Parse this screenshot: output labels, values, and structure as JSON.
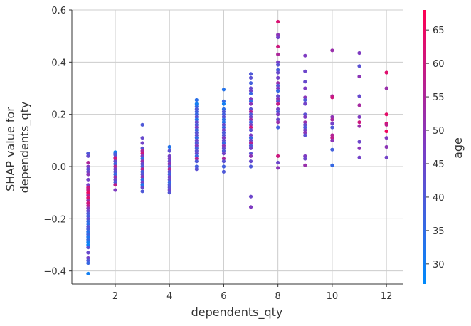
{
  "chart_data": {
    "type": "scatter",
    "title": "",
    "xlabel": "dependents_qty",
    "ylabel_lines": [
      "SHAP value for",
      "dependents_qty"
    ],
    "xlim": [
      0.4,
      12.6
    ],
    "ylim": [
      -0.45,
      0.6
    ],
    "x_ticks": [
      2,
      4,
      6,
      8,
      10,
      12
    ],
    "y_ticks": [
      -0.4,
      -0.2,
      0.0,
      0.2,
      0.4,
      0.6
    ],
    "y_tick_labels": [
      "−0.4",
      "−0.2",
      "0.0",
      "0.2",
      "0.4",
      "0.6"
    ],
    "grid": true,
    "colorbar": {
      "label": "age",
      "range": [
        27,
        68
      ],
      "ticks": [
        30,
        35,
        40,
        45,
        50,
        55,
        60,
        65
      ],
      "colors": {
        "low": "#008afb",
        "mid": "#7c3cc4",
        "high": "#ff0052"
      }
    },
    "points": [
      [
        1,
        0.05,
        42
      ],
      [
        1,
        0.05,
        40
      ],
      [
        1,
        0.04,
        44
      ],
      [
        1,
        0.015,
        55
      ],
      [
        1,
        0.0,
        48
      ],
      [
        1,
        -0.01,
        42
      ],
      [
        1,
        -0.02,
        45
      ],
      [
        1,
        -0.03,
        50
      ],
      [
        1,
        -0.05,
        46
      ],
      [
        1,
        -0.07,
        47
      ],
      [
        1,
        -0.08,
        62
      ],
      [
        1,
        -0.085,
        58
      ],
      [
        1,
        -0.09,
        60
      ],
      [
        1,
        -0.1,
        65
      ],
      [
        1,
        -0.11,
        55
      ],
      [
        1,
        -0.12,
        63
      ],
      [
        1,
        -0.13,
        52
      ],
      [
        1,
        -0.14,
        61
      ],
      [
        1,
        -0.15,
        57
      ],
      [
        1,
        -0.16,
        49
      ],
      [
        1,
        -0.17,
        44
      ],
      [
        1,
        -0.18,
        40
      ],
      [
        1,
        -0.19,
        38
      ],
      [
        1,
        -0.2,
        43
      ],
      [
        1,
        -0.21,
        36
      ],
      [
        1,
        -0.22,
        34
      ],
      [
        1,
        -0.23,
        41
      ],
      [
        1,
        -0.24,
        39
      ],
      [
        1,
        -0.25,
        33
      ],
      [
        1,
        -0.26,
        37
      ],
      [
        1,
        -0.27,
        32
      ],
      [
        1,
        -0.28,
        35
      ],
      [
        1,
        -0.29,
        30
      ],
      [
        1,
        -0.3,
        29
      ],
      [
        1,
        -0.31,
        42
      ],
      [
        1,
        -0.33,
        44
      ],
      [
        1,
        -0.35,
        46
      ],
      [
        1,
        -0.36,
        40
      ],
      [
        1,
        -0.37,
        36
      ],
      [
        1,
        -0.41,
        30
      ],
      [
        2,
        0.055,
        30
      ],
      [
        2,
        0.05,
        35
      ],
      [
        2,
        0.045,
        40
      ],
      [
        2,
        0.035,
        50
      ],
      [
        2,
        0.03,
        60
      ],
      [
        2,
        0.02,
        44
      ],
      [
        2,
        0.01,
        38
      ],
      [
        2,
        0.0,
        55
      ],
      [
        2,
        -0.01,
        47
      ],
      [
        2,
        -0.02,
        42
      ],
      [
        2,
        -0.03,
        36
      ],
      [
        2,
        -0.04,
        52
      ],
      [
        2,
        -0.05,
        45
      ],
      [
        2,
        -0.06,
        40
      ],
      [
        2,
        -0.07,
        58
      ],
      [
        2,
        -0.09,
        48
      ],
      [
        3,
        0.16,
        40
      ],
      [
        3,
        0.11,
        44
      ],
      [
        3,
        0.09,
        46
      ],
      [
        3,
        0.07,
        42
      ],
      [
        3,
        0.06,
        55
      ],
      [
        3,
        0.05,
        60
      ],
      [
        3,
        0.04,
        48
      ],
      [
        3,
        0.03,
        36
      ],
      [
        3,
        0.02,
        52
      ],
      [
        3,
        0.01,
        44
      ],
      [
        3,
        0.0,
        40
      ],
      [
        3,
        -0.01,
        57
      ],
      [
        3,
        -0.02,
        38
      ],
      [
        3,
        -0.03,
        42
      ],
      [
        3,
        -0.04,
        50
      ],
      [
        3,
        -0.05,
        34
      ],
      [
        3,
        -0.06,
        46
      ],
      [
        3,
        -0.07,
        32
      ],
      [
        3,
        -0.08,
        44
      ],
      [
        3,
        -0.095,
        40
      ],
      [
        4,
        0.075,
        33
      ],
      [
        4,
        0.06,
        42
      ],
      [
        4,
        0.04,
        46
      ],
      [
        4,
        0.03,
        48
      ],
      [
        4,
        0.02,
        44
      ],
      [
        4,
        0.01,
        50
      ],
      [
        4,
        0.0,
        40
      ],
      [
        4,
        -0.01,
        56
      ],
      [
        4,
        -0.02,
        42
      ],
      [
        4,
        -0.03,
        38
      ],
      [
        4,
        -0.04,
        46
      ],
      [
        4,
        -0.05,
        44
      ],
      [
        4,
        -0.06,
        36
      ],
      [
        4,
        -0.07,
        40
      ],
      [
        4,
        -0.08,
        42
      ],
      [
        4,
        -0.09,
        45
      ],
      [
        4,
        -0.1,
        41
      ],
      [
        5,
        0.255,
        34
      ],
      [
        5,
        0.24,
        30
      ],
      [
        5,
        0.23,
        35
      ],
      [
        5,
        0.22,
        40
      ],
      [
        5,
        0.21,
        38
      ],
      [
        5,
        0.2,
        36
      ],
      [
        5,
        0.19,
        42
      ],
      [
        5,
        0.18,
        33
      ],
      [
        5,
        0.17,
        44
      ],
      [
        5,
        0.16,
        39
      ],
      [
        5,
        0.15,
        46
      ],
      [
        5,
        0.14,
        37
      ],
      [
        5,
        0.13,
        41
      ],
      [
        5,
        0.12,
        43
      ],
      [
        5,
        0.11,
        35
      ],
      [
        5,
        0.1,
        45
      ],
      [
        5,
        0.09,
        40
      ],
      [
        5,
        0.08,
        48
      ],
      [
        5,
        0.07,
        38
      ],
      [
        5,
        0.06,
        42
      ],
      [
        5,
        0.05,
        44
      ],
      [
        5,
        0.04,
        36
      ],
      [
        5,
        0.03,
        56
      ],
      [
        5,
        0.02,
        40
      ],
      [
        5,
        0.0,
        38
      ],
      [
        5,
        -0.01,
        42
      ],
      [
        6,
        0.295,
        33
      ],
      [
        6,
        0.25,
        36
      ],
      [
        6,
        0.24,
        30
      ],
      [
        6,
        0.22,
        34
      ],
      [
        6,
        0.21,
        40
      ],
      [
        6,
        0.2,
        38
      ],
      [
        6,
        0.19,
        42
      ],
      [
        6,
        0.18,
        35
      ],
      [
        6,
        0.17,
        33
      ],
      [
        6,
        0.16,
        44
      ],
      [
        6,
        0.15,
        37
      ],
      [
        6,
        0.14,
        46
      ],
      [
        6,
        0.13,
        39
      ],
      [
        6,
        0.12,
        41
      ],
      [
        6,
        0.11,
        48
      ],
      [
        6,
        0.1,
        43
      ],
      [
        6,
        0.09,
        36
      ],
      [
        6,
        0.08,
        50
      ],
      [
        6,
        0.07,
        44
      ],
      [
        6,
        0.06,
        40
      ],
      [
        6,
        0.05,
        46
      ],
      [
        6,
        0.03,
        55
      ],
      [
        6,
        0.02,
        42
      ],
      [
        6,
        0.0,
        38
      ],
      [
        6,
        -0.02,
        40
      ],
      [
        7,
        0.355,
        40
      ],
      [
        7,
        0.34,
        42
      ],
      [
        7,
        0.32,
        38
      ],
      [
        7,
        0.3,
        44
      ],
      [
        7,
        0.29,
        46
      ],
      [
        7,
        0.28,
        36
      ],
      [
        7,
        0.26,
        48
      ],
      [
        7,
        0.25,
        35
      ],
      [
        7,
        0.24,
        50
      ],
      [
        7,
        0.22,
        42
      ],
      [
        7,
        0.21,
        55
      ],
      [
        7,
        0.2,
        40
      ],
      [
        7,
        0.19,
        44
      ],
      [
        7,
        0.18,
        52
      ],
      [
        7,
        0.17,
        38
      ],
      [
        7,
        0.16,
        46
      ],
      [
        7,
        0.15,
        60
      ],
      [
        7,
        0.14,
        42
      ],
      [
        7,
        0.12,
        48
      ],
      [
        7,
        0.11,
        36
      ],
      [
        7,
        0.1,
        44
      ],
      [
        7,
        0.09,
        56
      ],
      [
        7,
        0.08,
        40
      ],
      [
        7,
        0.07,
        46
      ],
      [
        7,
        0.05,
        42
      ],
      [
        7,
        0.04,
        50
      ],
      [
        7,
        0.02,
        44
      ],
      [
        7,
        0.0,
        40
      ],
      [
        7,
        -0.115,
        45
      ],
      [
        7,
        -0.155,
        48
      ],
      [
        8,
        0.555,
        62
      ],
      [
        8,
        0.505,
        50
      ],
      [
        8,
        0.495,
        46
      ],
      [
        8,
        0.46,
        60
      ],
      [
        8,
        0.43,
        55
      ],
      [
        8,
        0.4,
        47
      ],
      [
        8,
        0.39,
        42
      ],
      [
        8,
        0.37,
        38
      ],
      [
        8,
        0.36,
        44
      ],
      [
        8,
        0.34,
        46
      ],
      [
        8,
        0.32,
        52
      ],
      [
        8,
        0.31,
        40
      ],
      [
        8,
        0.3,
        48
      ],
      [
        8,
        0.29,
        36
      ],
      [
        8,
        0.27,
        44
      ],
      [
        8,
        0.26,
        50
      ],
      [
        8,
        0.25,
        42
      ],
      [
        8,
        0.24,
        58
      ],
      [
        8,
        0.22,
        46
      ],
      [
        8,
        0.21,
        40
      ],
      [
        8,
        0.2,
        48
      ],
      [
        8,
        0.18,
        44
      ],
      [
        8,
        0.17,
        52
      ],
      [
        8,
        0.15,
        38
      ],
      [
        8,
        0.04,
        60
      ],
      [
        8,
        0.015,
        45
      ],
      [
        8,
        -0.005,
        50
      ],
      [
        9,
        0.425,
        48
      ],
      [
        9,
        0.365,
        45
      ],
      [
        9,
        0.325,
        44
      ],
      [
        9,
        0.3,
        48
      ],
      [
        9,
        0.265,
        50
      ],
      [
        9,
        0.255,
        40
      ],
      [
        9,
        0.24,
        46
      ],
      [
        9,
        0.2,
        42
      ],
      [
        9,
        0.19,
        48
      ],
      [
        9,
        0.17,
        52
      ],
      [
        9,
        0.16,
        44
      ],
      [
        9,
        0.15,
        40
      ],
      [
        9,
        0.14,
        46
      ],
      [
        9,
        0.13,
        50
      ],
      [
        9,
        0.12,
        42
      ],
      [
        9,
        0.04,
        48
      ],
      [
        9,
        0.03,
        45
      ],
      [
        9,
        0.005,
        52
      ],
      [
        10,
        0.445,
        52
      ],
      [
        10,
        0.27,
        55
      ],
      [
        10,
        0.265,
        60
      ],
      [
        10,
        0.19,
        50
      ],
      [
        10,
        0.18,
        54
      ],
      [
        10,
        0.165,
        46
      ],
      [
        10,
        0.15,
        40
      ],
      [
        10,
        0.12,
        56
      ],
      [
        10,
        0.11,
        58
      ],
      [
        10,
        0.1,
        50
      ],
      [
        10,
        0.065,
        38
      ],
      [
        10,
        0.005,
        36
      ],
      [
        11,
        0.435,
        48
      ],
      [
        11,
        0.385,
        42
      ],
      [
        11,
        0.345,
        50
      ],
      [
        11,
        0.27,
        44
      ],
      [
        11,
        0.235,
        54
      ],
      [
        11,
        0.19,
        48
      ],
      [
        11,
        0.17,
        60
      ],
      [
        11,
        0.155,
        52
      ],
      [
        11,
        0.095,
        45
      ],
      [
        11,
        0.07,
        50
      ],
      [
        11,
        0.035,
        46
      ],
      [
        12,
        0.36,
        63
      ],
      [
        12,
        0.3,
        52
      ],
      [
        12,
        0.2,
        64
      ],
      [
        12,
        0.165,
        62
      ],
      [
        12,
        0.16,
        58
      ],
      [
        12,
        0.135,
        66
      ],
      [
        12,
        0.11,
        48
      ],
      [
        12,
        0.075,
        50
      ],
      [
        12,
        0.035,
        46
      ]
    ]
  }
}
